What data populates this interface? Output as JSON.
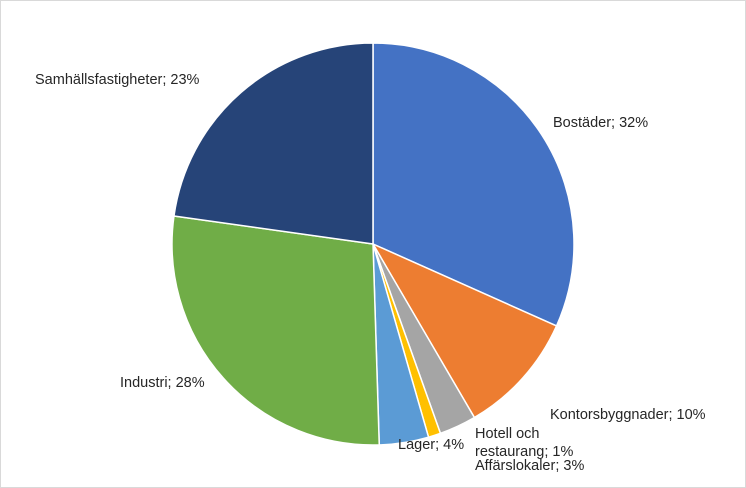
{
  "chart_data": {
    "type": "pie",
    "title": "",
    "legend": "none",
    "slices": [
      {
        "label": "Bostäder",
        "value": 32,
        "color": "#4472c4",
        "label_lines": [
          "Bostäder; 32%"
        ]
      },
      {
        "label": "Kontorsbyggnader",
        "value": 10,
        "color": "#ed7d31",
        "label_lines": [
          "Kontorsbyggnader; 10%"
        ]
      },
      {
        "label": "Affärslokaler",
        "value": 3,
        "color": "#a5a5a5",
        "label_lines": [
          "Affärslokaler; 3%"
        ]
      },
      {
        "label": "Hotell och restaurang",
        "value": 1,
        "color": "#ffc000",
        "label_lines": [
          "Hotell och",
          "restaurang; 1%"
        ]
      },
      {
        "label": "Lager",
        "value": 4,
        "color": "#5b9bd5",
        "label_lines": [
          "Lager; 4%"
        ]
      },
      {
        "label": "Industri",
        "value": 28,
        "color": "#70ad47",
        "label_lines": [
          "Industri; 28%"
        ]
      },
      {
        "label": "Samhällsfastigheter",
        "value": 23,
        "color": "#264478",
        "label_lines": [
          "Samhällsfastigheter; 23%"
        ]
      }
    ]
  }
}
